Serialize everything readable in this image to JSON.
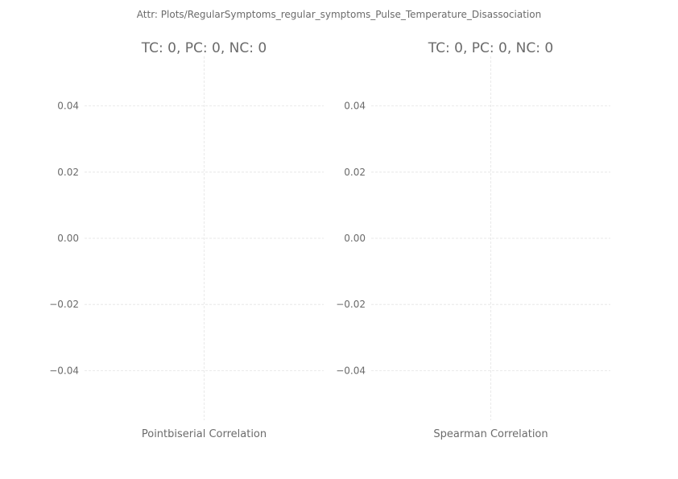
{
  "suptitle": "Attr: Plots/RegularSymptoms_regular_symptoms_Pulse_Temperature_Disassociation",
  "chart_data": [
    {
      "type": "scatter",
      "title": "TC: 0, PC: 0, NC: 0",
      "xlabel": "Pointbiserial Correlation",
      "ylabel": "",
      "ylim": [
        -0.055,
        0.055
      ],
      "yticks": [
        0.04,
        0.02,
        0.0,
        -0.02,
        -0.04
      ],
      "ytick_labels": [
        "0.04",
        "0.02",
        "0.00",
        "−0.02",
        "−0.04"
      ],
      "grid": true,
      "series": [
        {
          "values": []
        }
      ]
    },
    {
      "type": "scatter",
      "title": "TC: 0, PC: 0, NC: 0",
      "xlabel": "Spearman Correlation",
      "ylabel": "",
      "ylim": [
        -0.055,
        0.055
      ],
      "yticks": [
        0.04,
        0.02,
        0.0,
        -0.02,
        -0.04
      ],
      "ytick_labels": [
        "0.04",
        "0.02",
        "0.00",
        "−0.02",
        "−0.04"
      ],
      "grid": true,
      "series": [
        {
          "values": []
        }
      ]
    }
  ]
}
